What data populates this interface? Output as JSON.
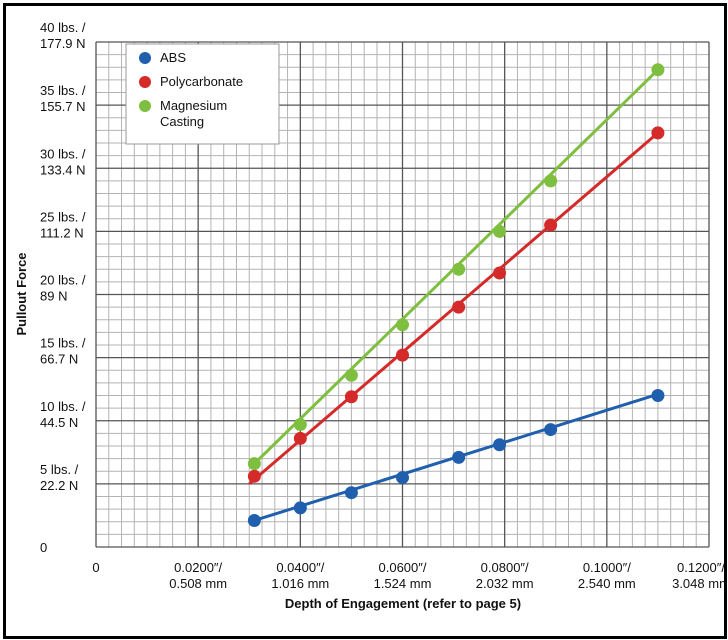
{
  "chart_data": {
    "type": "scatter",
    "title": "",
    "xlabel": "Depth of Engagement (refer to page 5)",
    "ylabel": "Pullout Force",
    "xlim": [
      0,
      0.12
    ],
    "ylim": [
      0,
      40
    ],
    "x_ticks": [
      {
        "value": 0,
        "lines": [
          "0"
        ]
      },
      {
        "value": 0.02,
        "lines": [
          "0.0200″/",
          "0.508 mm"
        ]
      },
      {
        "value": 0.04,
        "lines": [
          "0.0400″/",
          "1.016 mm"
        ]
      },
      {
        "value": 0.06,
        "lines": [
          "0.0600″/",
          "1.524 mm"
        ]
      },
      {
        "value": 0.08,
        "lines": [
          "0.0800″/",
          "2.032 mm"
        ]
      },
      {
        "value": 0.1,
        "lines": [
          "0.1000″/",
          "2.540 mm"
        ]
      },
      {
        "value": 0.12,
        "lines": [
          "0.1200″/",
          "3.048 mm"
        ]
      }
    ],
    "y_ticks": [
      {
        "value": 0,
        "lines": [
          "0"
        ]
      },
      {
        "value": 5,
        "lines": [
          "5 lbs. /",
          "22.2 N"
        ]
      },
      {
        "value": 10,
        "lines": [
          "10 lbs. /",
          "44.5 N"
        ]
      },
      {
        "value": 15,
        "lines": [
          "15 lbs. /",
          "66.7 N"
        ]
      },
      {
        "value": 20,
        "lines": [
          "20 lbs. /",
          "89 N"
        ]
      },
      {
        "value": 25,
        "lines": [
          "25 lbs. /",
          "111.2 N"
        ]
      },
      {
        "value": 30,
        "lines": [
          "30 lbs. /",
          "133.4 N"
        ]
      },
      {
        "value": 35,
        "lines": [
          "35 lbs. /",
          "155.7 N"
        ]
      },
      {
        "value": 40,
        "lines": [
          "40 lbs. /",
          "177.9 N"
        ]
      }
    ],
    "grid": true,
    "legend": {
      "position": "top-left",
      "entries": [
        {
          "lines": [
            "ABS"
          ]
        },
        {
          "lines": [
            "Polycarbonate"
          ]
        },
        {
          "lines": [
            "Magnesium",
            "Casting"
          ]
        }
      ]
    },
    "series": [
      {
        "name": "ABS",
        "color": "#1f5fae",
        "points": [
          [
            0.031,
            2.1
          ],
          [
            0.04,
            3.1
          ],
          [
            0.05,
            4.3
          ],
          [
            0.06,
            5.5
          ],
          [
            0.071,
            7.1
          ],
          [
            0.079,
            8.1
          ],
          [
            0.089,
            9.3
          ],
          [
            0.11,
            12.0
          ]
        ],
        "fit": [
          [
            0.031,
            2.1
          ],
          [
            0.11,
            12.1
          ]
        ]
      },
      {
        "name": "Polycarbonate",
        "color": "#d42a2a",
        "points": [
          [
            0.031,
            5.6
          ],
          [
            0.04,
            8.6
          ],
          [
            0.05,
            11.9
          ],
          [
            0.06,
            15.2
          ],
          [
            0.071,
            19.0
          ],
          [
            0.079,
            21.7
          ],
          [
            0.089,
            25.5
          ],
          [
            0.11,
            32.8
          ]
        ],
        "fit": [
          [
            0.03,
            5.0
          ],
          [
            0.11,
            32.8
          ]
        ]
      },
      {
        "name": "Magnesium Casting",
        "color": "#7fbf3f",
        "points": [
          [
            0.031,
            6.6
          ],
          [
            0.04,
            9.7
          ],
          [
            0.05,
            13.6
          ],
          [
            0.06,
            17.6
          ],
          [
            0.071,
            22.0
          ],
          [
            0.079,
            25.0
          ],
          [
            0.089,
            29.0
          ],
          [
            0.11,
            37.8
          ]
        ],
        "fit": [
          [
            0.031,
            6.6
          ],
          [
            0.11,
            37.8
          ]
        ]
      }
    ]
  }
}
